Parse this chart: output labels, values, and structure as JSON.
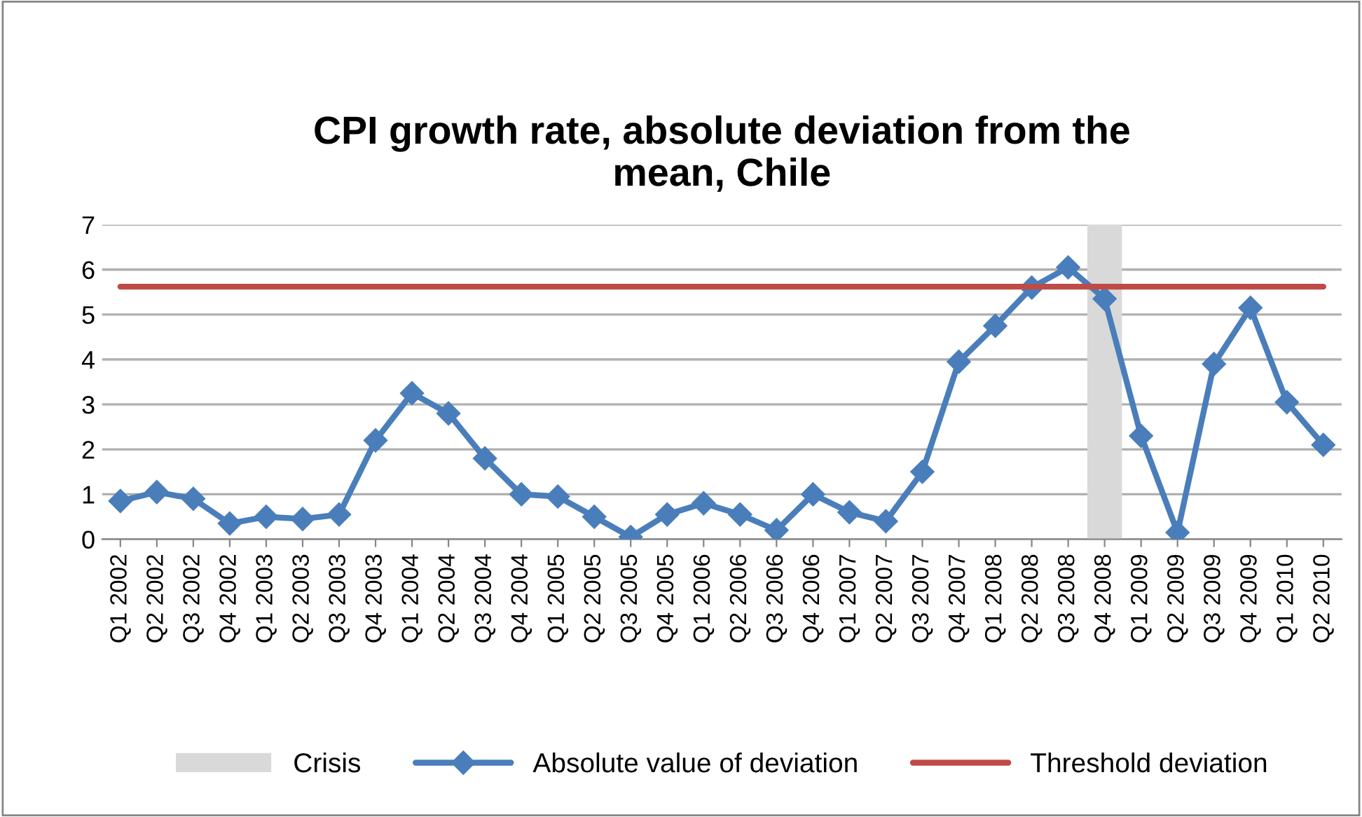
{
  "chart_data": {
    "type": "line",
    "title": "CPI growth rate, absolute deviation from the\nmean, Chile",
    "categories": [
      "Q1 2002",
      "Q2 2002",
      "Q3 2002",
      "Q4 2002",
      "Q1 2003",
      "Q2 2003",
      "Q3 2003",
      "Q4 2003",
      "Q1 2004",
      "Q2 2004",
      "Q3 2004",
      "Q4 2004",
      "Q1 2005",
      "Q2 2005",
      "Q3 2005",
      "Q4 2005",
      "Q1 2006",
      "Q2 2006",
      "Q3 2006",
      "Q4 2006",
      "Q1 2007",
      "Q2 2007",
      "Q3 2007",
      "Q4 2007",
      "Q1 2008",
      "Q2 2008",
      "Q3 2008",
      "Q4 2008",
      "Q1 2009",
      "Q2 2009",
      "Q3 2009",
      "Q4 2009",
      "Q1 2010",
      "Q2 2010"
    ],
    "series": [
      {
        "name": "Crisis",
        "type": "bar",
        "color": "#d9d9d9",
        "values": [
          null,
          null,
          null,
          null,
          null,
          null,
          null,
          null,
          null,
          null,
          null,
          null,
          null,
          null,
          null,
          null,
          null,
          null,
          null,
          null,
          null,
          null,
          null,
          null,
          null,
          null,
          null,
          7,
          null,
          null,
          null,
          null,
          null,
          null
        ]
      },
      {
        "name": "Absolute value of deviation",
        "color": "#4a7ebb",
        "marker": "diamond",
        "values": [
          0.85,
          1.05,
          0.9,
          0.35,
          0.5,
          0.45,
          0.55,
          2.2,
          3.25,
          2.8,
          1.8,
          1.0,
          0.95,
          0.5,
          0.05,
          0.55,
          0.8,
          0.55,
          0.2,
          1.0,
          0.6,
          0.4,
          1.5,
          3.95,
          4.75,
          5.6,
          6.05,
          5.35,
          2.3,
          0.15,
          3.9,
          5.15,
          3.05,
          2.1
        ]
      },
      {
        "name": "Threshold deviation",
        "color": "#be4b48",
        "marker": "none",
        "values": [
          5.62,
          5.62,
          5.62,
          5.62,
          5.62,
          5.62,
          5.62,
          5.62,
          5.62,
          5.62,
          5.62,
          5.62,
          5.62,
          5.62,
          5.62,
          5.62,
          5.62,
          5.62,
          5.62,
          5.62,
          5.62,
          5.62,
          5.62,
          5.62,
          5.62,
          5.62,
          5.62,
          5.62,
          5.62,
          5.62,
          5.62,
          5.62,
          5.62,
          5.62
        ]
      }
    ],
    "ylim": [
      0,
      7
    ],
    "yticks": [
      0,
      1,
      2,
      3,
      4,
      5,
      6,
      7
    ],
    "grid": "y",
    "legend": "bottom"
  }
}
